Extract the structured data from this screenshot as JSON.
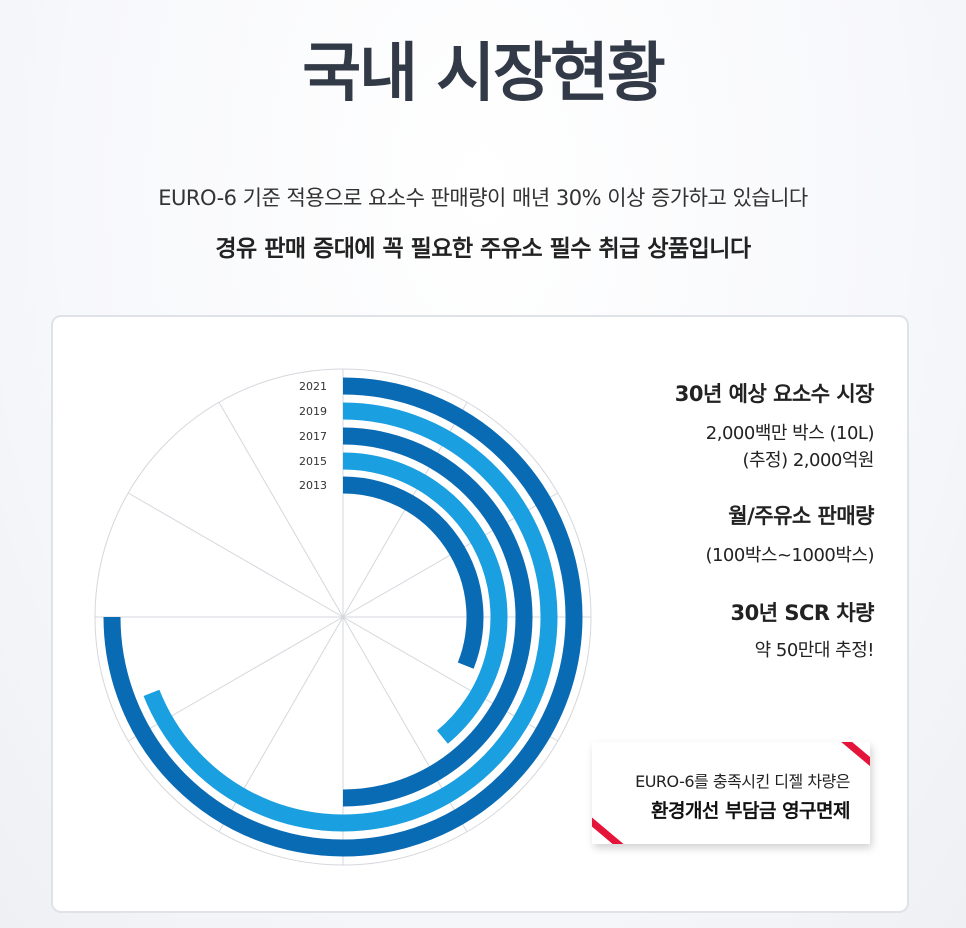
{
  "header": {
    "title": "국내 시장현황",
    "subtitle_line1": "EURO-6 기준 적용으로 요소수 판매량이 매년 30% 이상 증가하고 있습니다",
    "subtitle_line2": "경유 판매 증대에 꼭 필요한 주유소 필수 취급 상품입니다"
  },
  "info": {
    "market_heading": "30년 예상 요소수 시장",
    "market_line1": "2,000백만 박스 (10L)",
    "market_line2": "(추정) 2,000억원",
    "sales_heading": "월/주유소 판매량",
    "sales_line1": "(100박스~1000박스)",
    "scr_heading": "30년 SCR 차량",
    "scr_line1": "약 50만대 추정!"
  },
  "callout": {
    "line1": "EURO-6를 충족시킨 디젤 차량은",
    "line2": "환경개선 부담금 영구면제",
    "accent_color": "#e4143b"
  },
  "chart_data": {
    "type": "radial-bar",
    "categories": [
      "2021",
      "2019",
      "2017",
      "2015",
      "2013"
    ],
    "values": [
      0.75,
      0.69,
      0.5,
      0.39,
      0.31
    ],
    "value_unit": "fraction of full circle",
    "colors": [
      "#0a6bb5",
      "#1a9fe0",
      "#0a6bb5",
      "#1a9fe0",
      "#0a6bb5"
    ],
    "grid": true,
    "grid_spokes": 12
  }
}
